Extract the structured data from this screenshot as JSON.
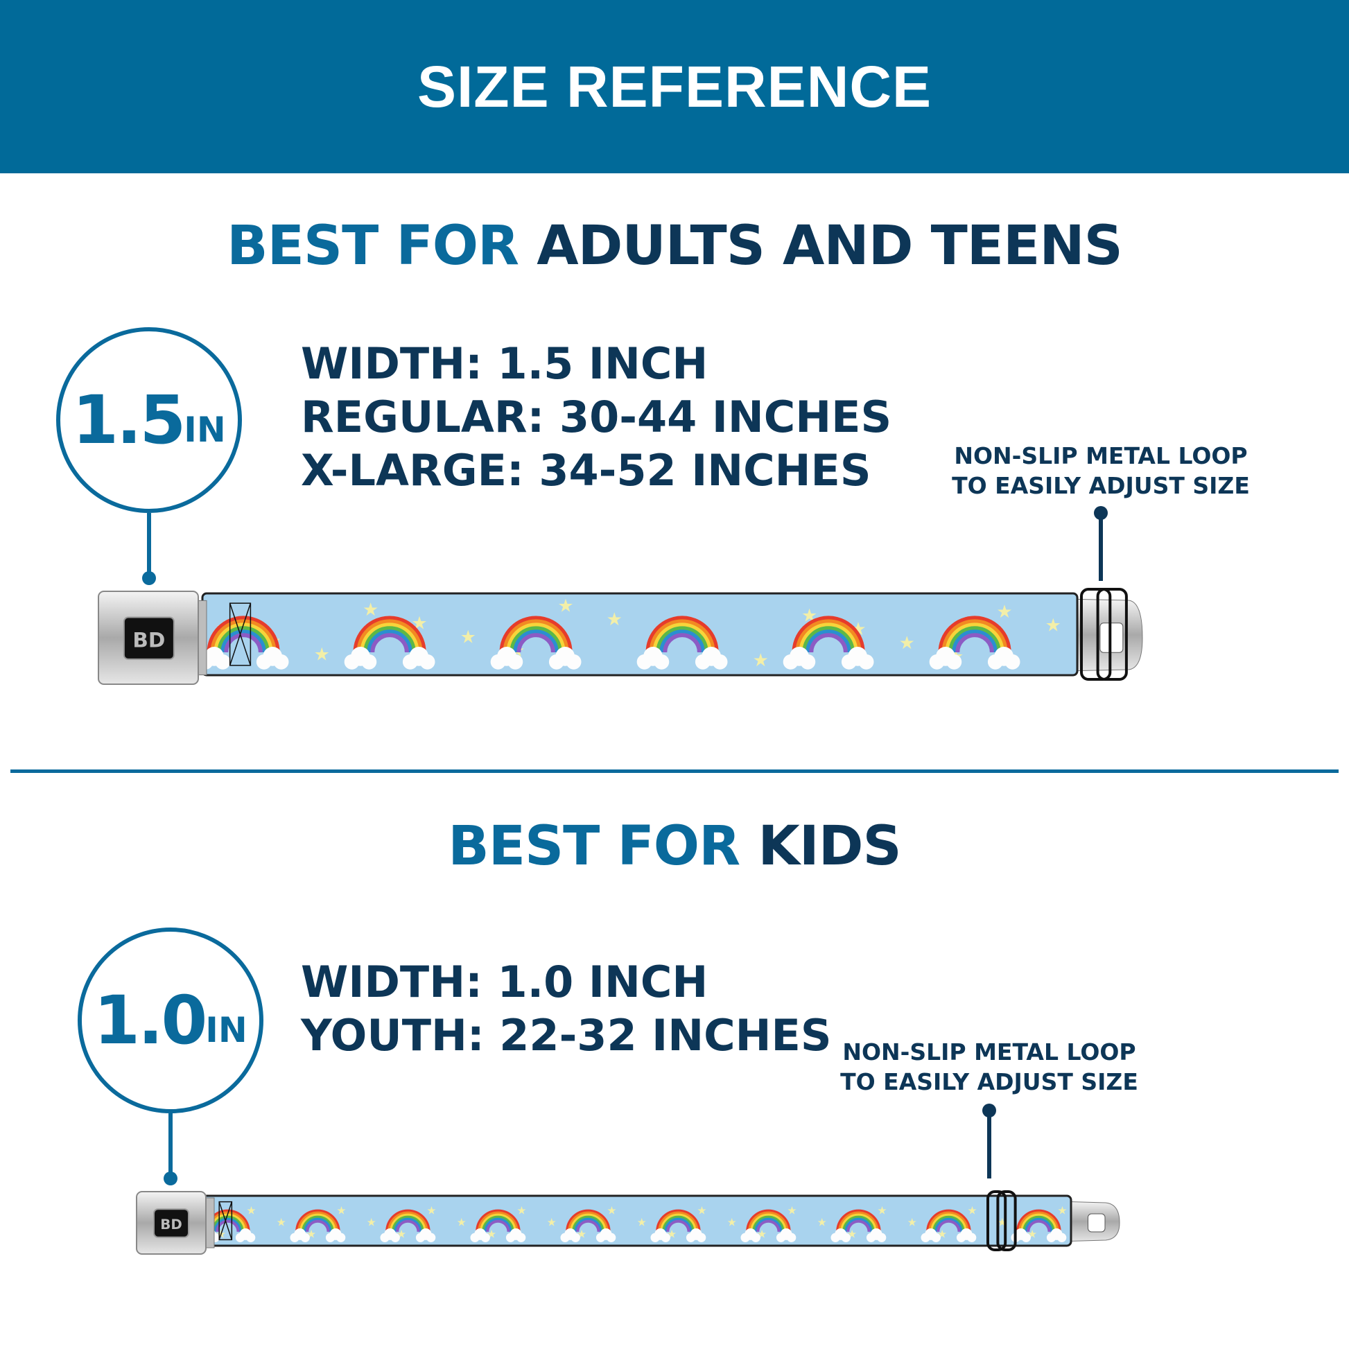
{
  "header": {
    "title": "SIZE REFERENCE"
  },
  "colors": {
    "header_bg": "#016a99",
    "accent_blue": "#0a6a9c",
    "dark_navy": "#0d3657",
    "strap_bg": "#a9d3ee"
  },
  "adults": {
    "heading_prefix": "BEST FOR",
    "heading_main": "ADULTS AND TEENS",
    "badge_number": "1.5",
    "badge_unit": "IN",
    "specs": [
      "WIDTH: 1.5 INCH",
      "REGULAR: 30-44 INCHES",
      "X-LARGE: 34-52 INCHES"
    ],
    "annotation": [
      "NON-SLIP METAL LOOP",
      "TO EASILY ADJUST SIZE"
    ],
    "buckle_logo": "BD",
    "icons": [
      "seatbelt-buckle-icon",
      "rainbow-pattern-strap",
      "metal-loop-icon"
    ]
  },
  "kids": {
    "heading_prefix": "BEST FOR",
    "heading_main": "KIDS",
    "badge_number": "1.0",
    "badge_unit": "IN",
    "specs": [
      "WIDTH: 1.0 INCH",
      "YOUTH: 22-32 INCHES"
    ],
    "annotation": [
      "NON-SLIP METAL LOOP",
      "TO EASILY ADJUST SIZE"
    ],
    "buckle_logo": "BD",
    "icons": [
      "seatbelt-buckle-icon",
      "rainbow-pattern-strap",
      "metal-loop-icon"
    ]
  }
}
